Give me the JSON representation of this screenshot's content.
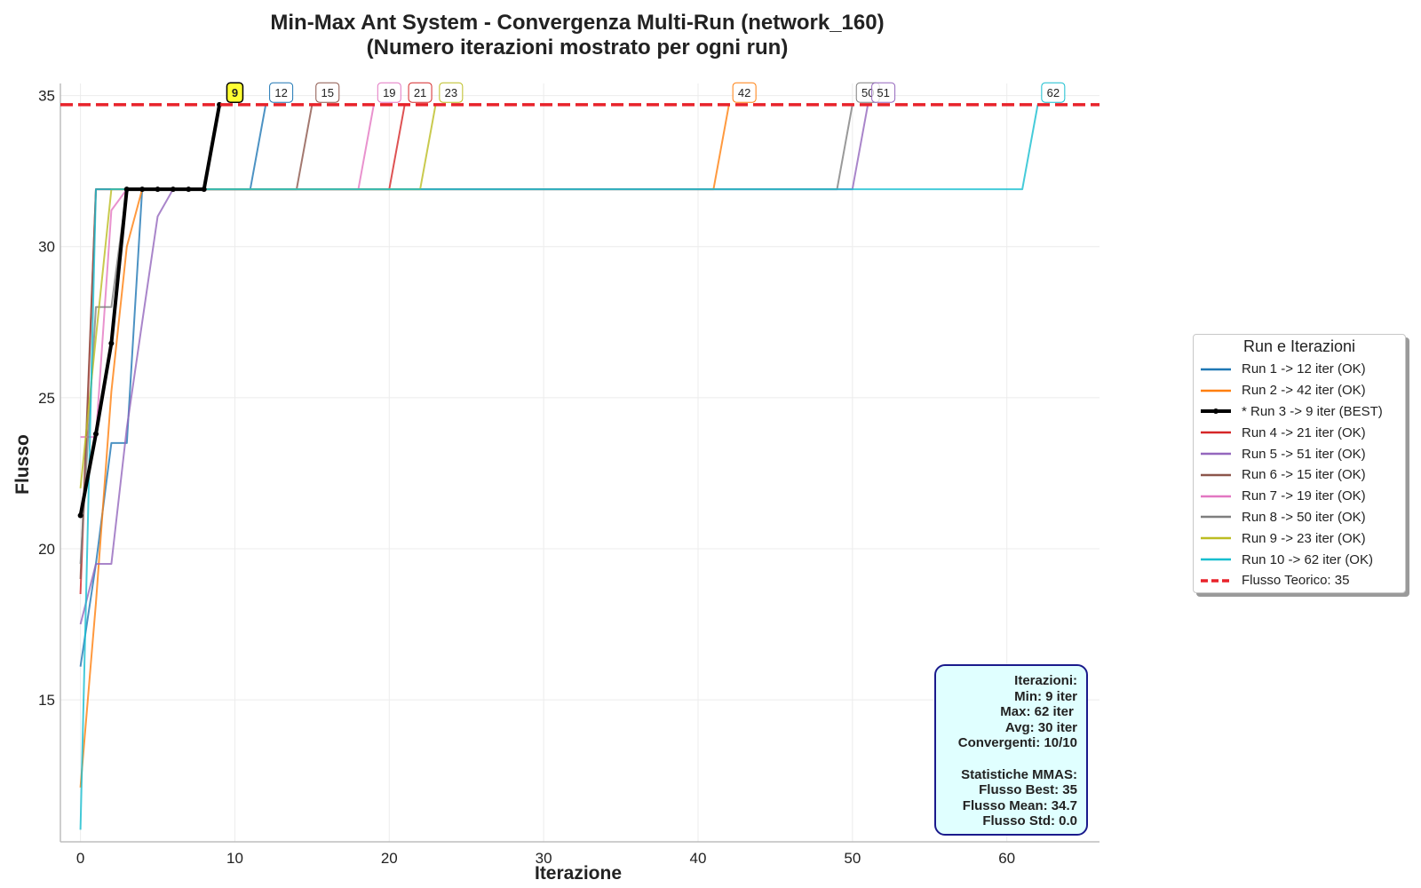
{
  "chart_data": {
    "type": "line",
    "title": "Min-Max Ant System - Convergenza Multi-Run (network_160)",
    "subtitle": "(Numero iterazioni mostrato per ogni run)",
    "xlabel": "Iterazione",
    "ylabel": "Flusso",
    "xlim": [
      -1.3,
      66
    ],
    "ylim": [
      10.3,
      35.4
    ],
    "xticks": [
      0,
      10,
      20,
      30,
      40,
      50,
      60
    ],
    "yticks": [
      15,
      20,
      25,
      30,
      35
    ],
    "grid": true,
    "legend_title": "Run e Iterazioni",
    "legend_position": "center-right outside",
    "reference_line": {
      "name": "Flusso Teorico: 35",
      "value": 34.7,
      "color": "#e8222a",
      "style": "dashed"
    },
    "series": [
      {
        "name": "Run 1 -> 12 iter (OK)",
        "color": "#1f77b4",
        "iterations": 12,
        "x": [
          0,
          1,
          2,
          3,
          4,
          11,
          12
        ],
        "y": [
          16.1,
          19.5,
          23.5,
          23.5,
          31.9,
          31.9,
          34.7
        ]
      },
      {
        "name": "Run 2 -> 42 iter (OK)",
        "color": "#ff7f0e",
        "iterations": 42,
        "x": [
          0,
          1,
          2,
          3,
          4,
          41,
          42
        ],
        "y": [
          12.1,
          18.2,
          25.2,
          30.0,
          31.9,
          31.9,
          34.7
        ]
      },
      {
        "name": "* Run 3 -> 9 iter (BEST)",
        "color": "#000000",
        "iterations": 9,
        "best": true,
        "x": [
          0,
          1,
          2,
          3,
          4,
          5,
          6,
          7,
          8,
          9
        ],
        "y": [
          21.1,
          23.8,
          26.8,
          31.9,
          31.9,
          31.9,
          31.9,
          31.9,
          31.9,
          34.7
        ]
      },
      {
        "name": "Run 4 -> 21 iter (OK)",
        "color": "#d62728",
        "iterations": 21,
        "x": [
          0,
          1,
          20,
          21
        ],
        "y": [
          18.5,
          31.9,
          31.9,
          34.7
        ]
      },
      {
        "name": "Run 5 -> 51 iter (OK)",
        "color": "#9467bd",
        "iterations": 51,
        "x": [
          0,
          1,
          2,
          3,
          4,
          5,
          6,
          50,
          51
        ],
        "y": [
          17.5,
          19.5,
          19.5,
          24.0,
          27.5,
          31.0,
          31.9,
          31.9,
          34.7
        ]
      },
      {
        "name": "Run 6 -> 15 iter (OK)",
        "color": "#8c564b",
        "iterations": 15,
        "x": [
          0,
          1,
          14,
          15
        ],
        "y": [
          19.0,
          31.9,
          31.9,
          34.7
        ]
      },
      {
        "name": "Run 7 -> 19 iter (OK)",
        "color": "#e377c2",
        "iterations": 19,
        "x": [
          0,
          1,
          2,
          3,
          18,
          19
        ],
        "y": [
          23.7,
          23.7,
          31.2,
          31.9,
          31.9,
          34.7
        ]
      },
      {
        "name": "Run 8 -> 50 iter (OK)",
        "color": "#7f7f7f",
        "iterations": 50,
        "x": [
          0,
          1,
          2,
          3,
          49,
          50
        ],
        "y": [
          19.5,
          28.0,
          28.0,
          31.9,
          31.9,
          34.7
        ]
      },
      {
        "name": "Run 9 -> 23 iter (OK)",
        "color": "#bcbd22",
        "iterations": 23,
        "x": [
          0,
          1,
          2,
          22,
          23
        ],
        "y": [
          22.0,
          27.0,
          31.9,
          31.9,
          34.7
        ]
      },
      {
        "name": "Run 10 -> 62 iter (OK)",
        "color": "#17becf",
        "iterations": 62,
        "x": [
          0,
          1,
          61,
          62
        ],
        "y": [
          10.7,
          31.9,
          31.9,
          34.7
        ]
      }
    ],
    "iteration_badges": [
      {
        "label": "9",
        "x": 10,
        "highlight": true,
        "color": "#000000"
      },
      {
        "label": "12",
        "x": 13,
        "color": "#1f77b4"
      },
      {
        "label": "15",
        "x": 16,
        "color": "#8c564b"
      },
      {
        "label": "19",
        "x": 20,
        "color": "#e377c2"
      },
      {
        "label": "21",
        "x": 22,
        "color": "#d62728"
      },
      {
        "label": "23",
        "x": 24,
        "color": "#bcbd22"
      },
      {
        "label": "42",
        "x": 43,
        "color": "#ff7f0e"
      },
      {
        "label": "50",
        "x": 51,
        "color": "#7f7f7f"
      },
      {
        "label": "51",
        "x": 52,
        "color": "#9467bd"
      },
      {
        "label": "62",
        "x": 63,
        "color": "#17becf"
      }
    ],
    "badge_y": 35.1
  },
  "stats_box": {
    "lines": [
      "Iterazioni:",
      "Min: 9 iter",
      "Max: 62 iter ",
      "Avg: 30 iter",
      "Convergenti: 10/10",
      "",
      "Statistiche MMAS:",
      "Flusso Best: 35",
      "Flusso Mean: 34.7",
      "Flusso Std: 0.0"
    ]
  }
}
